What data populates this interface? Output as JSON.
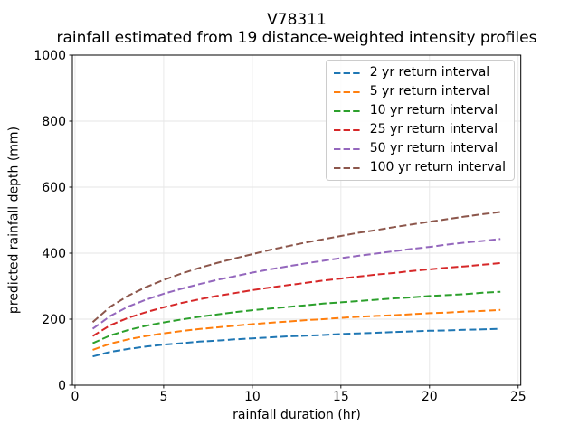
{
  "header": {
    "title": "V78311",
    "subtitle": "rainfall estimated from 19 distance-weighted intensity profiles"
  },
  "chart_data": {
    "type": "line",
    "title": "V78311",
    "subtitle": "rainfall estimated from 19 distance-weighted intensity profiles",
    "xlabel": "rainfall duration (hr)",
    "ylabel": "predicted rainfall depth (mm)",
    "xlim": [
      -0.15,
      25.15
    ],
    "ylim": [
      0,
      1000
    ],
    "xticks": [
      0,
      5,
      10,
      15,
      20,
      25
    ],
    "yticks": [
      0,
      200,
      400,
      600,
      800,
      1000
    ],
    "grid": true,
    "grid_color": "#e6e6e6",
    "legend_position": "upper right",
    "line_style": "dashed",
    "x": [
      1,
      2,
      3,
      4,
      5,
      6,
      7,
      8,
      9,
      10,
      11,
      12,
      13,
      14,
      15,
      16,
      17,
      18,
      19,
      20,
      21,
      22,
      23,
      24
    ],
    "series": [
      {
        "name": "2 yr return interval",
        "color": "#1f77b4",
        "values": [
          87,
          101,
          110,
          117,
          123,
          127,
          132,
          135,
          139,
          142,
          145,
          148,
          150,
          152,
          155,
          157,
          159,
          161,
          163,
          165,
          166,
          168,
          169,
          171
        ]
      },
      {
        "name": "5 yr return interval",
        "color": "#ff7f0e",
        "values": [
          107,
          126,
          139,
          149,
          157,
          164,
          170,
          175,
          180,
          185,
          189,
          193,
          197,
          200,
          204,
          207,
          210,
          212,
          215,
          218,
          220,
          223,
          225,
          228
        ]
      },
      {
        "name": "10 yr return interval",
        "color": "#2ca02c",
        "values": [
          127,
          151,
          167,
          180,
          190,
          199,
          207,
          214,
          221,
          227,
          232,
          237,
          242,
          247,
          251,
          255,
          259,
          263,
          266,
          270,
          273,
          276,
          280,
          283
        ]
      },
      {
        "name": "25 yr return interval",
        "color": "#d62728",
        "values": [
          149,
          182,
          204,
          221,
          236,
          249,
          260,
          270,
          279,
          288,
          296,
          303,
          310,
          317,
          323,
          329,
          335,
          340,
          346,
          351,
          356,
          360,
          365,
          370
        ]
      },
      {
        "name": "50 yr return interval",
        "color": "#9467bd",
        "values": [
          171,
          210,
          238,
          259,
          277,
          292,
          306,
          319,
          330,
          341,
          351,
          360,
          369,
          377,
          385,
          392,
          399,
          406,
          413,
          419,
          426,
          432,
          437,
          443
        ]
      },
      {
        "name": "100 yr return interval",
        "color": "#8c564b",
        "values": [
          191,
          238,
          271,
          297,
          319,
          338,
          355,
          370,
          384,
          397,
          410,
          421,
          432,
          442,
          452,
          462,
          470,
          479,
          487,
          495,
          503,
          511,
          518,
          525
        ]
      }
    ]
  }
}
